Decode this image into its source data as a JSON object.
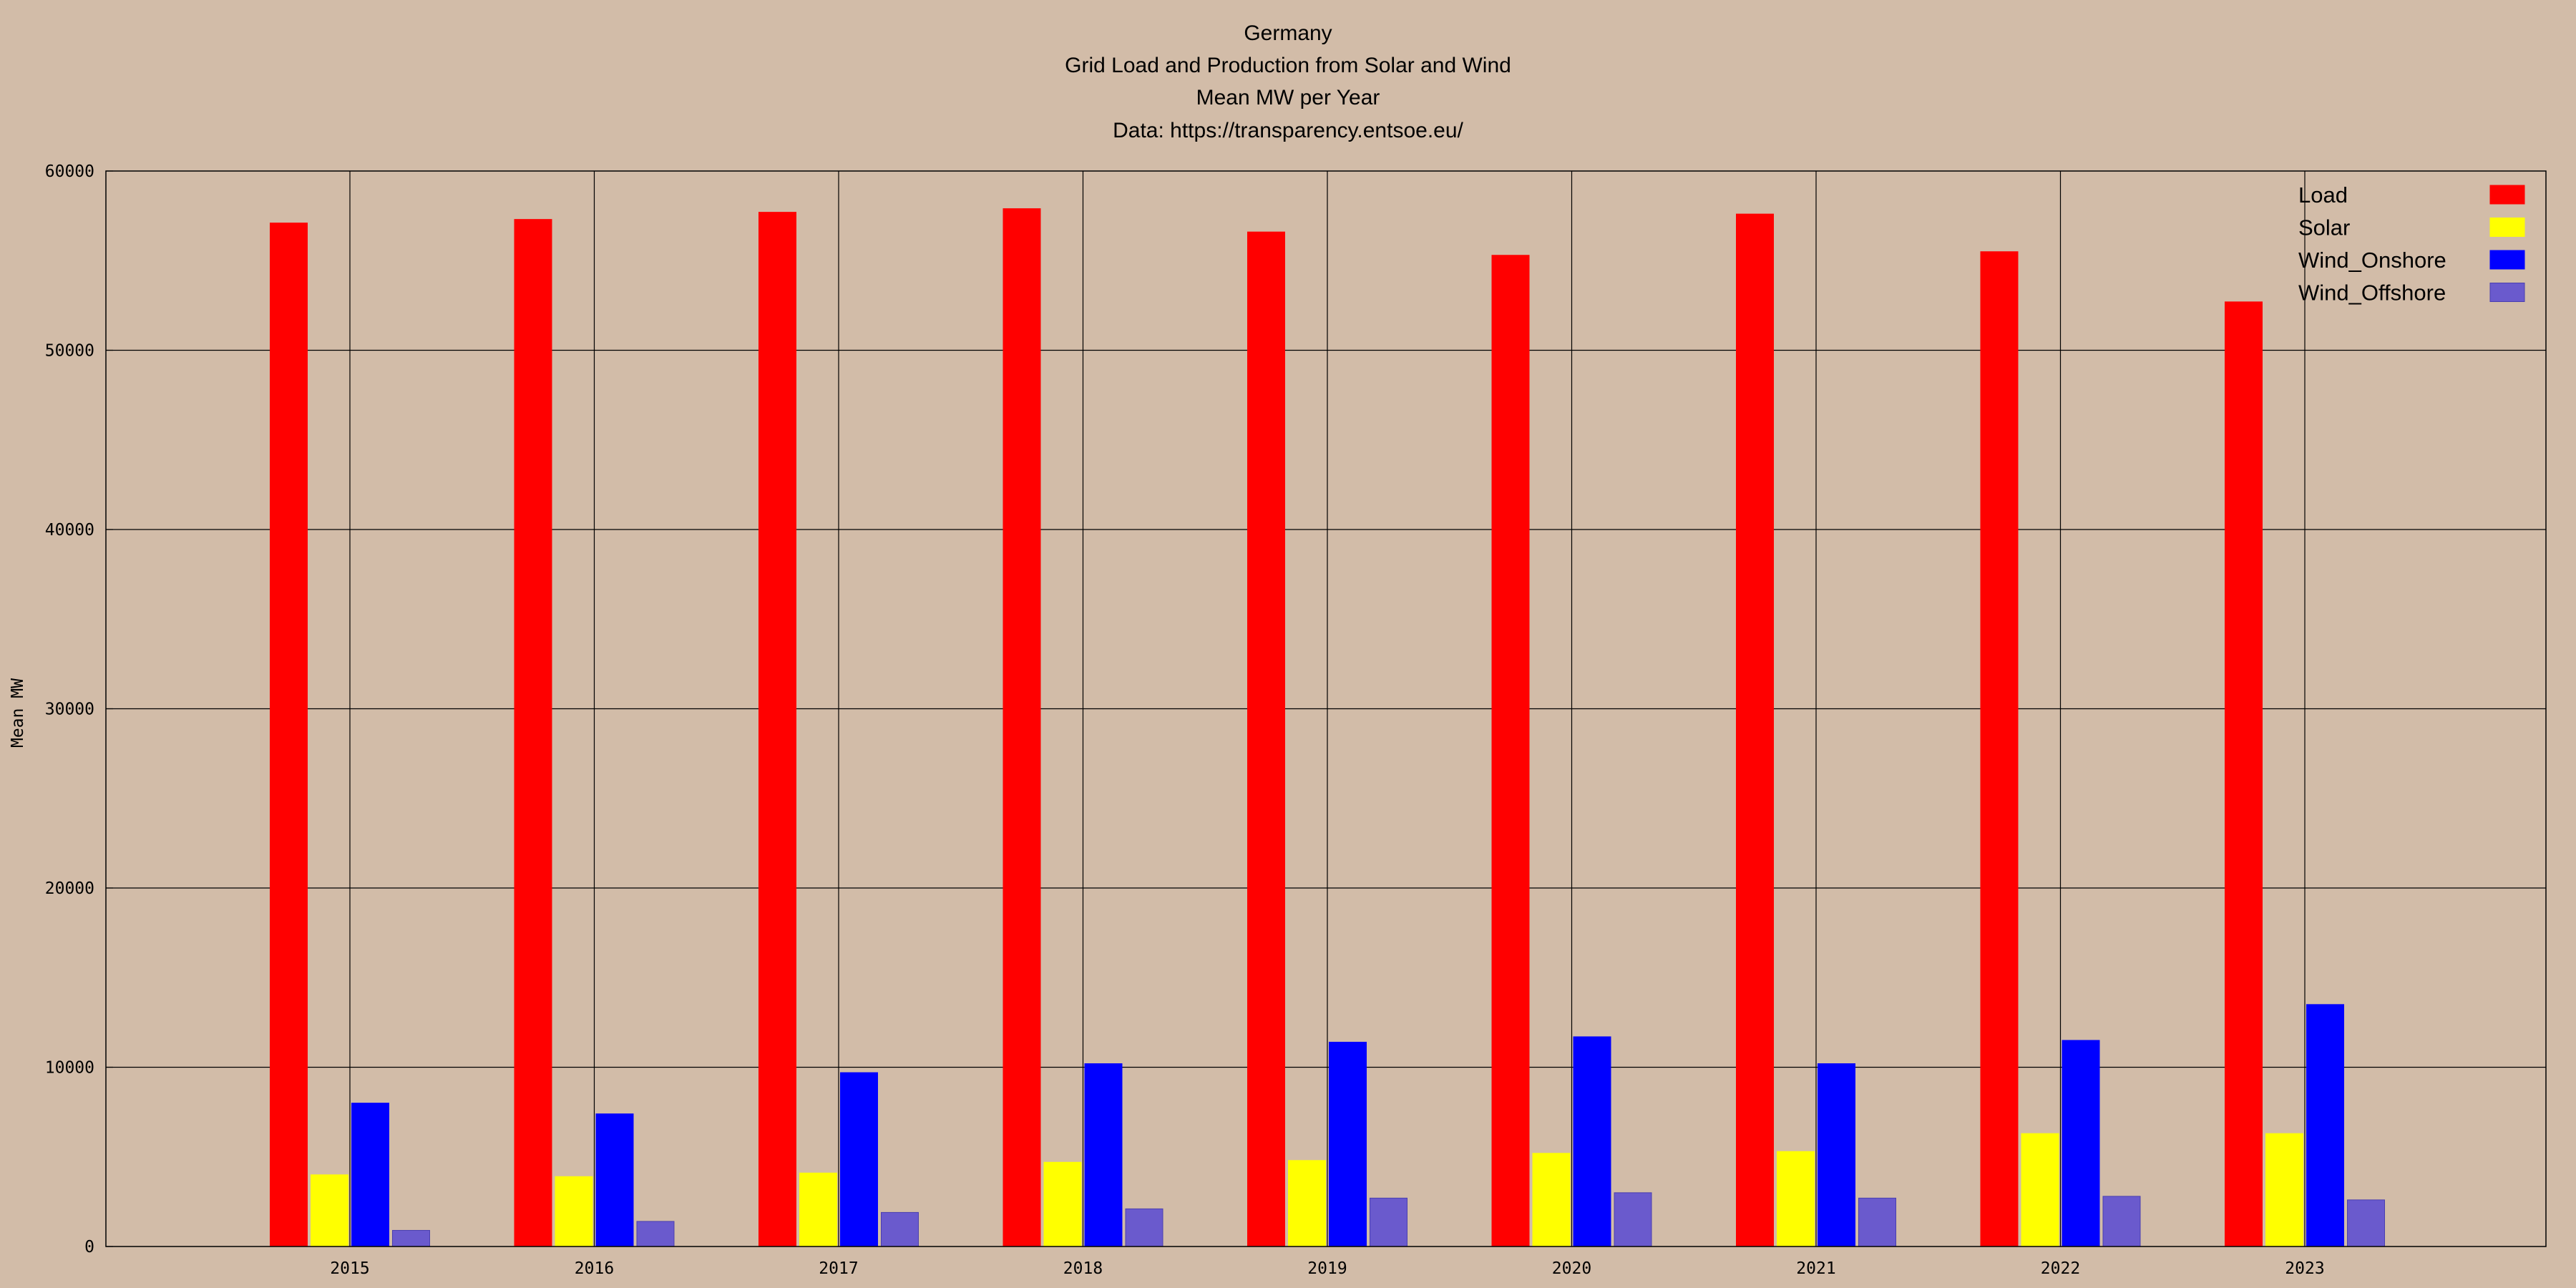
{
  "chart_data": {
    "type": "bar",
    "title_lines": [
      "Germany",
      "Grid Load and Production from Solar and Wind",
      "Mean MW per Year",
      "Data: https://transparency.entsoe.eu/"
    ],
    "xlabel": "",
    "ylabel": "Mean MW",
    "ylim": [
      0,
      60000
    ],
    "yticks": [
      0,
      10000,
      20000,
      30000,
      40000,
      50000,
      60000
    ],
    "grid": true,
    "legend_position": "top-right",
    "categories": [
      "2015",
      "2016",
      "2017",
      "2018",
      "2019",
      "2020",
      "2021",
      "2022",
      "2023"
    ],
    "series": [
      {
        "name": "Load",
        "color": "#ff0000",
        "values": [
          57100,
          57300,
          57700,
          57900,
          56600,
          55300,
          57600,
          55500,
          52700
        ]
      },
      {
        "name": "Solar",
        "color": "#ffff00",
        "values": [
          4000,
          3900,
          4100,
          4700,
          4800,
          5200,
          5300,
          6300,
          6300
        ]
      },
      {
        "name": "Wind_Onshore",
        "color": "#0000ff",
        "values": [
          8000,
          7400,
          9700,
          10200,
          11400,
          11700,
          10200,
          11500,
          13500
        ]
      },
      {
        "name": "Wind_Offshore",
        "color": "#6a5acd",
        "values": [
          900,
          1400,
          1900,
          2100,
          2700,
          3000,
          2700,
          2800,
          2600
        ]
      }
    ]
  }
}
